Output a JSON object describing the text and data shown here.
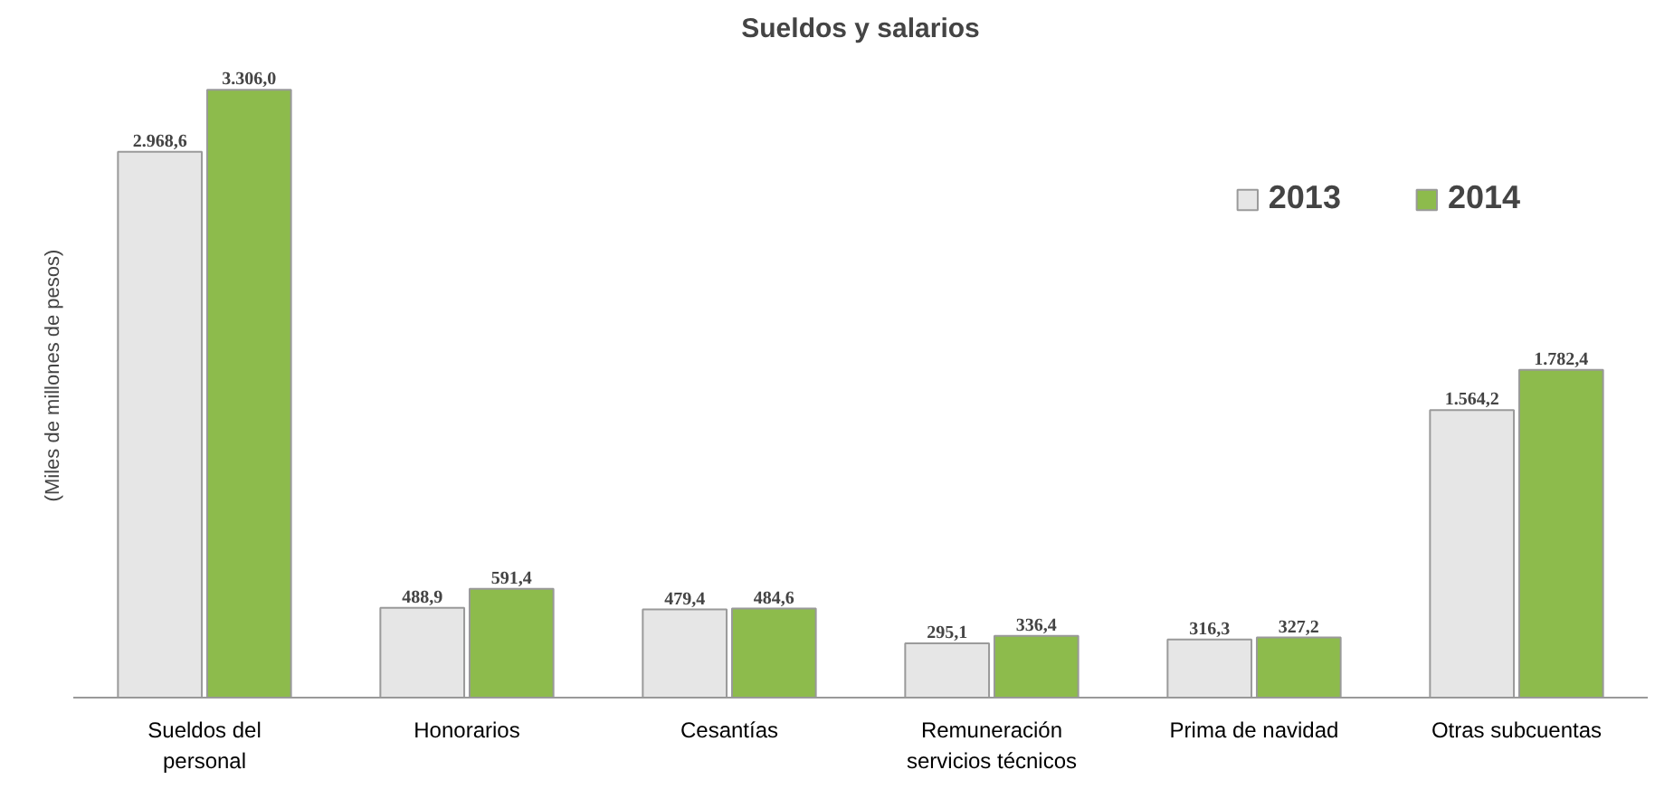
{
  "chart_data": {
    "type": "bar",
    "title": "Sueldos y salarios",
    "ylabel": "(Miles de millones de pesos)",
    "categories": [
      "Sueldos del\npersonal",
      "Honorarios",
      "Cesantías",
      "Remuneración\nservicios técnicos",
      "Prima de navidad",
      "Otras subcuentas"
    ],
    "series": [
      {
        "name": "2013",
        "color": "#e6e6e6",
        "values": [
          2968.6,
          488.9,
          479.4,
          295.1,
          316.3,
          1564.2
        ],
        "value_labels": [
          "2.968,6",
          "488,9",
          "479,4",
          "295,1",
          "316,3",
          "1.564,2"
        ]
      },
      {
        "name": "2014",
        "color": "#8dbb4c",
        "values": [
          3306.0,
          591.4,
          484.6,
          336.4,
          327.2,
          1782.4
        ],
        "value_labels": [
          "3.306,0",
          "591,4",
          "484,6",
          "336,4",
          "327,2",
          "1.782,4"
        ]
      }
    ],
    "legend": "top right",
    "tick_labels": "x",
    "grid": false
  }
}
